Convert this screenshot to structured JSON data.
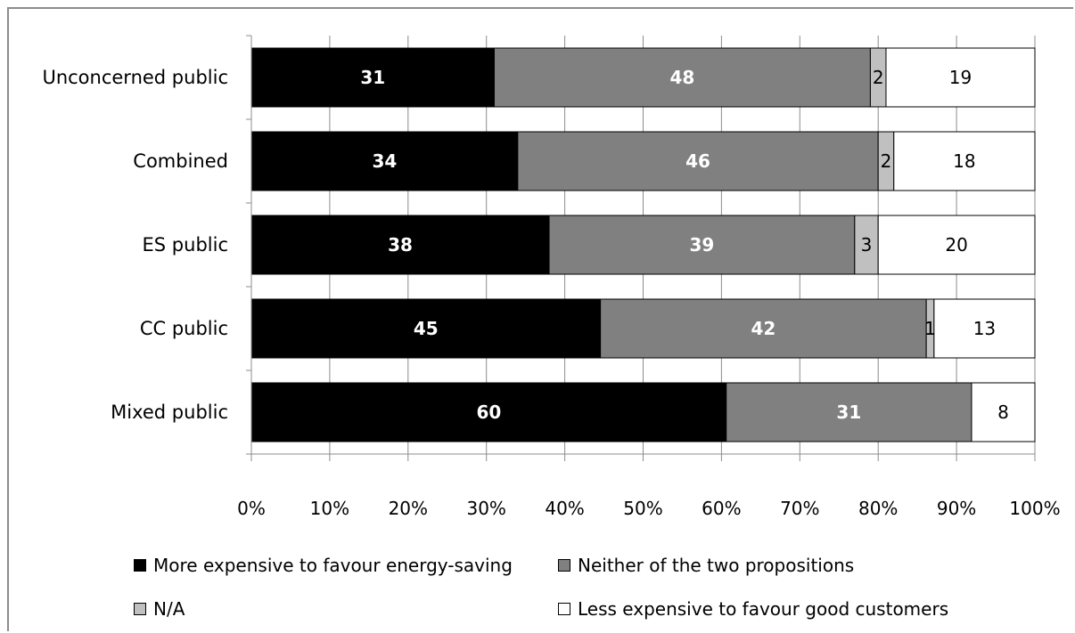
{
  "chart_data": {
    "type": "bar",
    "orientation": "horizontal",
    "stacked": true,
    "categories": [
      "Unconcerned public",
      "Combined",
      "ES public",
      "CC public",
      "Mixed public"
    ],
    "series": [
      {
        "name": "More expensive to favour energy-saving",
        "color": "#000000",
        "label_color": "#ffffff",
        "values": [
          31,
          34,
          38,
          45,
          60
        ]
      },
      {
        "name": "Neither of the two propositions",
        "color": "#808080",
        "label_color": "#ffffff",
        "values": [
          48,
          46,
          39,
          42,
          31
        ]
      },
      {
        "name": "N/A",
        "color": "#c0c0c0",
        "label_color": "#000000",
        "values": [
          2,
          2,
          3,
          1,
          0
        ]
      },
      {
        "name": "Less expensive to favour good customers",
        "color": "#ffffff",
        "label_color": "#000000",
        "values": [
          19,
          18,
          20,
          13,
          8
        ]
      }
    ],
    "display_labels": [
      [
        "31",
        "48",
        "2",
        "19"
      ],
      [
        "34",
        "46",
        "2",
        "18"
      ],
      [
        "38",
        "39",
        "3",
        "20"
      ],
      [
        "45",
        "42",
        "1",
        "13"
      ],
      [
        "60",
        "31",
        "",
        "8"
      ]
    ],
    "x_ticks": [
      "0%",
      "10%",
      "20%",
      "30%",
      "40%",
      "50%",
      "60%",
      "70%",
      "80%",
      "90%",
      "100%"
    ],
    "xlim": [
      0,
      100
    ],
    "grid": true,
    "legend_position": "bottom"
  }
}
